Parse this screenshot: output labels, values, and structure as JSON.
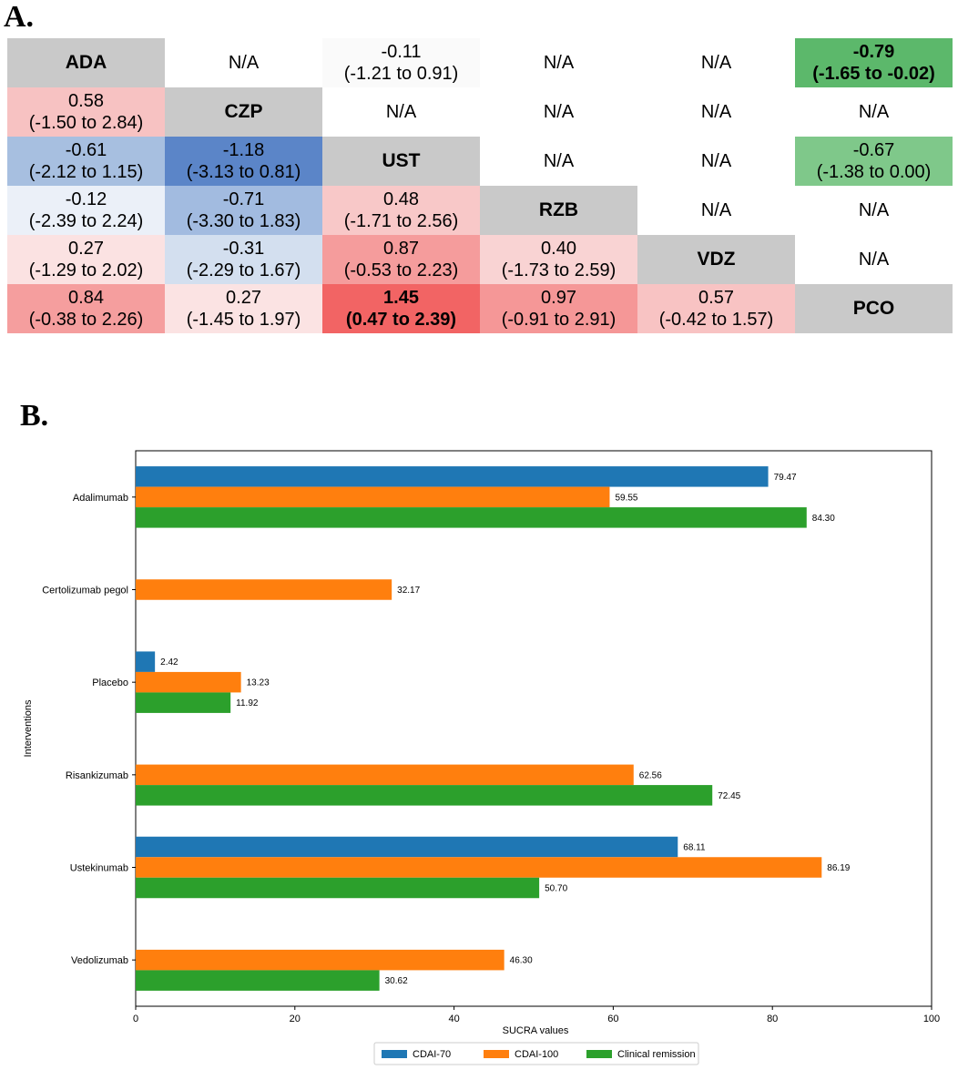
{
  "panel_a": {
    "label": "A.",
    "headers": [
      "ADA",
      "CZP",
      "UST",
      "RZB",
      "VDZ",
      "PCO"
    ],
    "rows": [
      [
        null,
        {
          "v": "N/A",
          "c": ""
        },
        {
          "v": "-0.11",
          "ci": "(-1.21 to 0.91)",
          "c": "#fafafa"
        },
        {
          "v": "N/A",
          "c": ""
        },
        {
          "v": "N/A",
          "c": ""
        },
        {
          "v": "-0.79",
          "ci": "(-1.65 to -0.02)",
          "c": "#5cb86b",
          "bold": true
        }
      ],
      [
        {
          "v": "0.58",
          "ci": "(-1.50 to 2.84)",
          "c": "#f7c2c2"
        },
        null,
        {
          "v": "N/A",
          "c": ""
        },
        {
          "v": "N/A",
          "c": ""
        },
        {
          "v": "N/A",
          "c": ""
        },
        {
          "v": "N/A",
          "c": ""
        }
      ],
      [
        {
          "v": "-0.61",
          "ci": "(-2.12 to 1.15)",
          "c": "#a7bfe0"
        },
        {
          "v": "-1.18",
          "ci": "(-3.13 to 0.81)",
          "c": "#5b85c8"
        },
        null,
        {
          "v": "N/A",
          "c": ""
        },
        {
          "v": "N/A",
          "c": ""
        },
        {
          "v": "-0.67",
          "ci": "(-1.38 to 0.00)",
          "c": "#7fc88a"
        }
      ],
      [
        {
          "v": "-0.12",
          "ci": "(-2.39 to 2.24)",
          "c": "#ebf0f8"
        },
        {
          "v": "-0.71",
          "ci": "(-3.30 to 1.83)",
          "c": "#a2bbe0"
        },
        {
          "v": "0.48",
          "ci": "(-1.71 to 2.56)",
          "c": "#f8c8c8"
        },
        null,
        {
          "v": "N/A",
          "c": ""
        },
        {
          "v": "N/A",
          "c": ""
        }
      ],
      [
        {
          "v": "0.27",
          "ci": "(-1.29 to 2.02)",
          "c": "#fbe2e2"
        },
        {
          "v": "-0.31",
          "ci": "(-2.29 to 1.67)",
          "c": "#d3dfef"
        },
        {
          "v": "0.87",
          "ci": "(-0.53 to 2.23)",
          "c": "#f59c9c"
        },
        {
          "v": "0.40",
          "ci": "(-1.73 to 2.59)",
          "c": "#f9d3d3"
        },
        null,
        {
          "v": "N/A",
          "c": ""
        }
      ],
      [
        {
          "v": "0.84",
          "ci": "(-0.38 to 2.26)",
          "c": "#f59e9e"
        },
        {
          "v": "0.27",
          "ci": "(-1.45 to 1.97)",
          "c": "#fbe3e3"
        },
        {
          "v": "1.45",
          "ci": "(0.47 to 2.39)",
          "c": "#f26464",
          "bold": true
        },
        {
          "v": "0.97",
          "ci": "(-0.91 to 2.91)",
          "c": "#f59797"
        },
        {
          "v": "0.57",
          "ci": "(-0.42 to 1.57)",
          "c": "#f8c3c3"
        },
        null
      ]
    ]
  },
  "panel_b": {
    "label": "B."
  },
  "chart_data": {
    "type": "bar",
    "orientation": "horizontal",
    "categories": [
      "Adalimumab",
      "Certolizumab pegol",
      "Placebo",
      "Risankizumab",
      "Ustekinumab",
      "Vedolizumab"
    ],
    "series": [
      {
        "name": "CDAI-70",
        "color": "#1f77b4",
        "values": [
          79.47,
          null,
          2.42,
          null,
          68.11,
          null
        ],
        "labels": [
          "79.47",
          null,
          "2.42",
          null,
          "68.11",
          null
        ]
      },
      {
        "name": "CDAI-100",
        "color": "#ff7f0e",
        "values": [
          59.55,
          32.17,
          13.23,
          62.56,
          86.19,
          46.3
        ],
        "labels": [
          "59.55",
          "32.17",
          "13.23",
          "62.56",
          "86.19",
          "46.30"
        ]
      },
      {
        "name": "Clinical remission",
        "color": "#2ca02c",
        "values": [
          84.3,
          null,
          11.92,
          72.45,
          50.7,
          30.62
        ],
        "labels": [
          "84.30",
          null,
          "11.92",
          "72.45",
          "50.70",
          "30.62"
        ]
      }
    ],
    "xlabel": "SUCRA values",
    "ylabel": "Interventions",
    "xlim": [
      0,
      100
    ],
    "xticks": [
      "0",
      "20",
      "40",
      "60",
      "80",
      "100"
    ],
    "legend_position": "bottom-center"
  }
}
